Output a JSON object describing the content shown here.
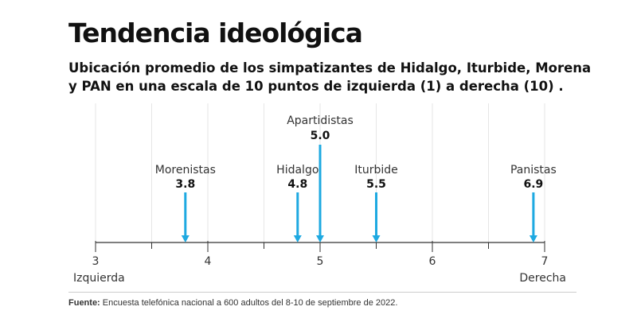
{
  "title": "Tendencia ideológica",
  "subtitle": "Ubicación promedio de los simpatizantes de Hidalgo, Iturbide, Morena y PAN en una escala de 10 puntos de izquierda (1) a derecha (10) .",
  "source": {
    "label": "Fuente:",
    "text": "Encuesta telefónica nacional a 600 adultos del 8-10 de septiembre de 2022."
  },
  "chart_data": {
    "type": "scatter",
    "title": "Tendencia ideológica",
    "xlabel": "",
    "ylabel": "",
    "xlim": [
      3,
      7
    ],
    "grid": true,
    "ticks": [
      3,
      4,
      5,
      6,
      7
    ],
    "tick_labels": [
      "3",
      "4",
      "5",
      "6",
      "7"
    ],
    "axis_end_labels": {
      "left": "Izquierda",
      "right": "Derecha"
    },
    "points": [
      {
        "name": "Morenistas",
        "value": 3.8,
        "label": "3.8"
      },
      {
        "name": "Hidalgo",
        "value": 4.8,
        "label": "4.8"
      },
      {
        "name": "Apartidistas",
        "value": 5.0,
        "label": "5.0"
      },
      {
        "name": "Iturbide",
        "value": 5.5,
        "label": "5.5"
      },
      {
        "name": "Panistas",
        "value": 6.9,
        "label": "6.9"
      }
    ],
    "colors": {
      "arrow": "#1ea9e1",
      "axis": "#333333",
      "grid": "#e6e6e6"
    }
  }
}
